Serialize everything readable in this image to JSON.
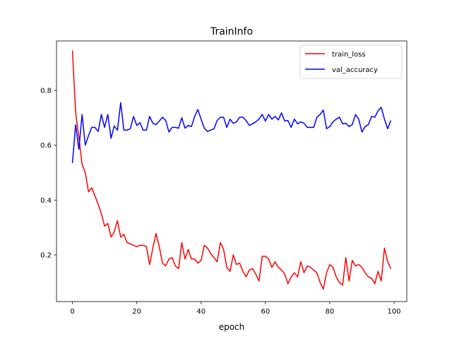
{
  "chart_data": {
    "type": "line",
    "title": "TrainInfo",
    "xlabel": "epoch",
    "ylabel": "",
    "xlim": [
      -4.95,
      103.95
    ],
    "ylim": [
      0.03,
      0.98
    ],
    "xticks": [
      0,
      20,
      40,
      60,
      80,
      100
    ],
    "xtick_labels": [
      "0",
      "20",
      "40",
      "60",
      "80",
      "100"
    ],
    "yticks": [
      0.2,
      0.4,
      0.6,
      0.8
    ],
    "ytick_labels": [
      "0.2",
      "0.4",
      "0.6",
      "0.8"
    ],
    "grid": false,
    "legend_position": "top-right",
    "x": [
      0,
      1,
      2,
      3,
      4,
      5,
      6,
      7,
      8,
      9,
      10,
      11,
      12,
      13,
      14,
      15,
      16,
      17,
      18,
      19,
      20,
      21,
      22,
      23,
      24,
      25,
      26,
      27,
      28,
      29,
      30,
      31,
      32,
      33,
      34,
      35,
      36,
      37,
      38,
      39,
      40,
      41,
      42,
      43,
      44,
      45,
      46,
      47,
      48,
      49,
      50,
      51,
      52,
      53,
      54,
      55,
      56,
      57,
      58,
      59,
      60,
      61,
      62,
      63,
      64,
      65,
      66,
      67,
      68,
      69,
      70,
      71,
      72,
      73,
      74,
      75,
      76,
      77,
      78,
      79,
      80,
      81,
      82,
      83,
      84,
      85,
      86,
      87,
      88,
      89,
      90,
      91,
      92,
      93,
      94,
      95,
      96,
      97,
      98,
      99
    ],
    "series": [
      {
        "name": "train_loss",
        "color": "#ff0000",
        "values": [
          0.945,
          0.72,
          0.63,
          0.53,
          0.5,
          0.43,
          0.445,
          0.415,
          0.385,
          0.35,
          0.305,
          0.315,
          0.265,
          0.285,
          0.325,
          0.265,
          0.275,
          0.245,
          0.24,
          0.235,
          0.23,
          0.235,
          0.235,
          0.23,
          0.165,
          0.225,
          0.278,
          0.23,
          0.17,
          0.16,
          0.185,
          0.19,
          0.16,
          0.15,
          0.245,
          0.185,
          0.22,
          0.185,
          0.185,
          0.17,
          0.18,
          0.235,
          0.225,
          0.205,
          0.19,
          0.175,
          0.245,
          0.22,
          0.155,
          0.14,
          0.2,
          0.165,
          0.17,
          0.14,
          0.12,
          0.145,
          0.15,
          0.13,
          0.105,
          0.195,
          0.195,
          0.185,
          0.155,
          0.175,
          0.155,
          0.145,
          0.13,
          0.095,
          0.12,
          0.135,
          0.12,
          0.175,
          0.135,
          0.16,
          0.155,
          0.145,
          0.135,
          0.1,
          0.075,
          0.135,
          0.165,
          0.155,
          0.12,
          0.1,
          0.09,
          0.19,
          0.105,
          0.18,
          0.16,
          0.165,
          0.155,
          0.135,
          0.12,
          0.115,
          0.095,
          0.14,
          0.105,
          0.225,
          0.175,
          0.15
        ]
      },
      {
        "name": "val_accuracy",
        "color": "#0000ff",
        "values": [
          0.535,
          0.675,
          0.585,
          0.712,
          0.6,
          0.635,
          0.665,
          0.665,
          0.65,
          0.712,
          0.665,
          0.712,
          0.625,
          0.67,
          0.655,
          0.755,
          0.655,
          0.655,
          0.66,
          0.705,
          0.672,
          0.682,
          0.655,
          0.655,
          0.705,
          0.68,
          0.675,
          0.688,
          0.702,
          0.69,
          0.648,
          0.665,
          0.665,
          0.662,
          0.7,
          0.662,
          0.672,
          0.668,
          0.705,
          0.73,
          0.695,
          0.662,
          0.65,
          0.655,
          0.66,
          0.69,
          0.702,
          0.702,
          0.665,
          0.695,
          0.68,
          0.685,
          0.702,
          0.702,
          0.69,
          0.672,
          0.678,
          0.685,
          0.695,
          0.712,
          0.688,
          0.712,
          0.695,
          0.705,
          0.692,
          0.718,
          0.688,
          0.69,
          0.665,
          0.695,
          0.678,
          0.685,
          0.68,
          0.665,
          0.665,
          0.665,
          0.702,
          0.712,
          0.728,
          0.66,
          0.668,
          0.685,
          0.695,
          0.702,
          0.678,
          0.68,
          0.668,
          0.675,
          0.712,
          0.695,
          0.648,
          0.668,
          0.675,
          0.705,
          0.702,
          0.725,
          0.738,
          0.695,
          0.66,
          0.69
        ]
      }
    ]
  }
}
